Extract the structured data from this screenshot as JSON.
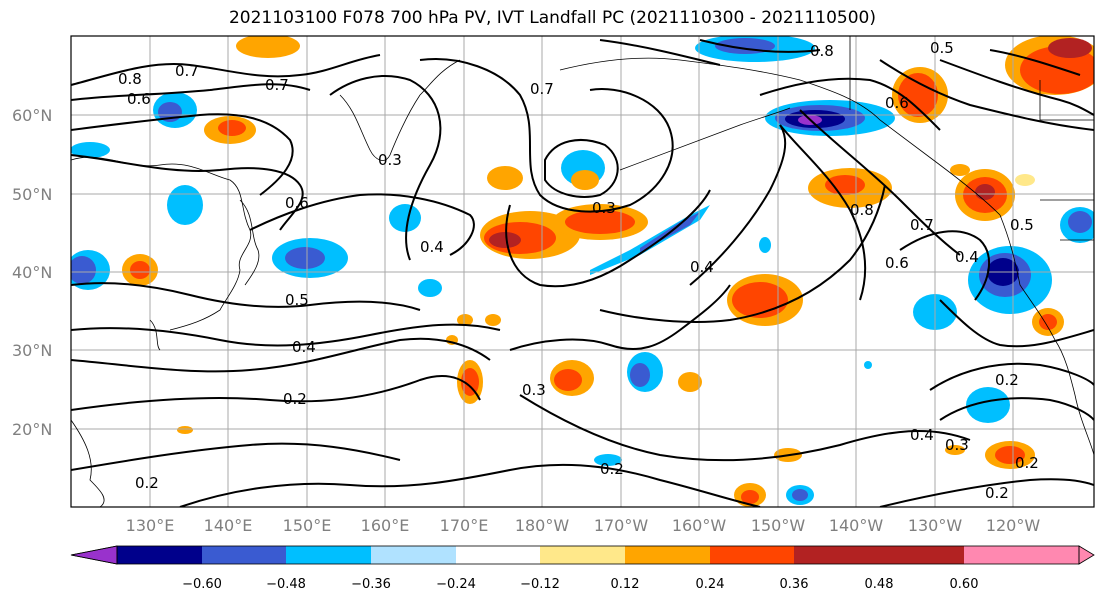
{
  "title": "2021103100 F078 700 hPa PV, IVT Landfall PC (2021110300 - 2021110500)",
  "lat_labels": [
    "60°N",
    "50°N",
    "40°N",
    "30°N",
    "20°N"
  ],
  "lon_labels": [
    "130°E",
    "140°E",
    "150°E",
    "160°E",
    "170°E",
    "180°W",
    "170°W",
    "160°W",
    "150°W",
    "140°W",
    "130°W",
    "120°W"
  ],
  "contour_labels": [
    "0.8",
    "0.7",
    "0.6",
    "0.7",
    "0.7",
    "0.8",
    "0.5",
    "0.6",
    "0.3",
    "0.6",
    "0.4",
    "0.3",
    "0.4",
    "0.5",
    "0.4",
    "0.2",
    "0.3",
    "0.2",
    "0.2",
    "0.7",
    "0.6",
    "0.8",
    "0.4",
    "0.5",
    "0.2",
    "0.4",
    "0.3",
    "0.2",
    "0.2"
  ],
  "colorbar": {
    "ticks": [
      "−0.60",
      "−0.48",
      "−0.36",
      "−0.24",
      "−0.12",
      "0.12",
      "0.24",
      "0.36",
      "0.48",
      "0.60"
    ],
    "colors": [
      "#9932cc",
      "#00008b",
      "#3a5bd1",
      "#00bfff",
      "#b0e2ff",
      "#ffffff",
      "#ffe88a",
      "#ffa500",
      "#ff4500",
      "#b22222",
      "#ff88b0"
    ]
  },
  "anomaly_colors": {
    "neg_strong": "#00008b",
    "neg_mid": "#3a5bd1",
    "neg_light": "#00bfff",
    "pos_light": "#ffe88a",
    "pos_mid": "#ffa500",
    "pos_strong": "#ff4500",
    "pos_max": "#b22222",
    "neg_max": "#9932cc"
  }
}
